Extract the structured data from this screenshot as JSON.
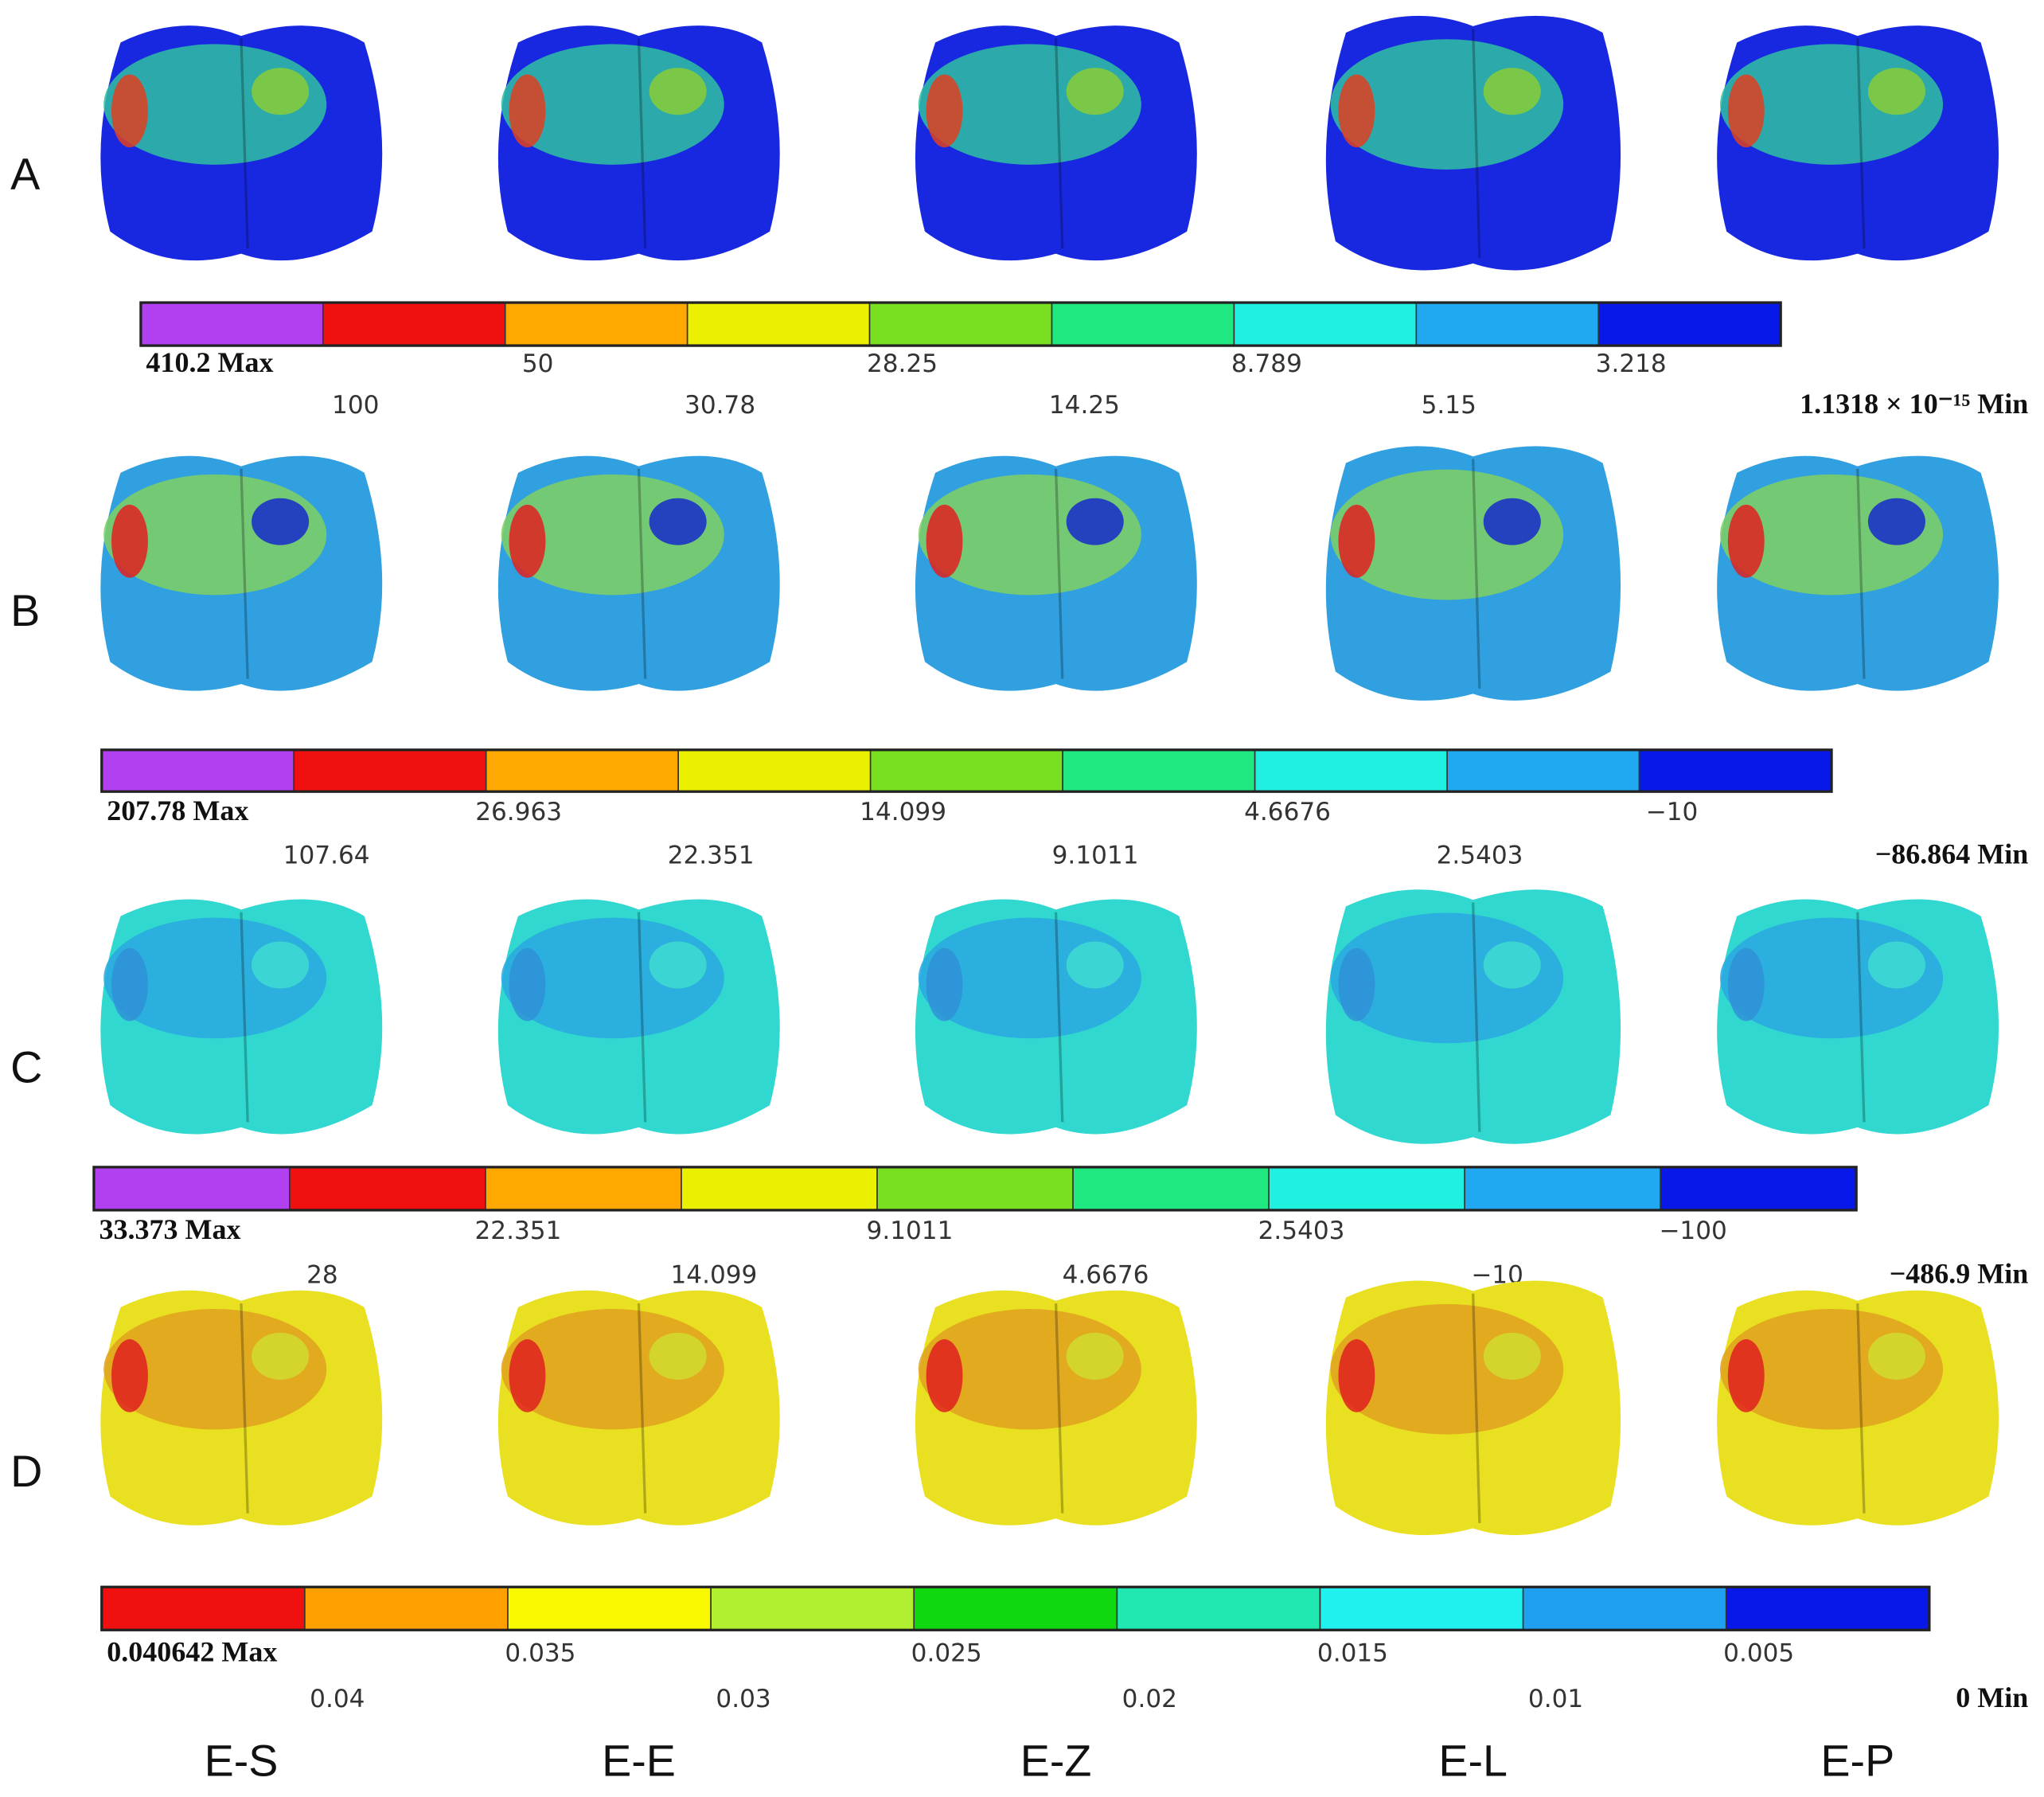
{
  "rows": [
    {
      "label": "A",
      "colorbar": {
        "colors": [
          "#b040f0",
          "#f01010",
          "#ffa800",
          "#eaf000",
          "#78e020",
          "#20e880",
          "#20f0e0",
          "#20a8f0",
          "#0818e8"
        ],
        "labels": [
          "410.2 Max",
          "100",
          "50",
          "30.78",
          "28.25",
          "14.25",
          "8.789",
          "5.15",
          "3.218",
          "1.1318 × 10⁻¹⁵ Min"
        ]
      }
    },
    {
      "label": "B",
      "colorbar": {
        "colors": [
          "#b040f0",
          "#f01010",
          "#ffa800",
          "#eaf000",
          "#78e020",
          "#20e880",
          "#20f0e0",
          "#20a8f0",
          "#0818e8"
        ],
        "labels": [
          "207.78 Max",
          "107.64",
          "26.963",
          "22.351",
          "14.099",
          "9.1011",
          "4.6676",
          "2.5403",
          "−10",
          "−86.864 Min"
        ]
      }
    },
    {
      "label": "C",
      "colorbar": {
        "colors": [
          "#b040f0",
          "#f01010",
          "#ffa800",
          "#eaf000",
          "#78e020",
          "#20e880",
          "#20f0e0",
          "#20a8f0",
          "#0818e8"
        ],
        "labels": [
          "33.373 Max",
          "28",
          "22.351",
          "14.099",
          "9.1011",
          "4.6676",
          "2.5403",
          "−10",
          "−100",
          "−486.9 Min"
        ]
      }
    },
    {
      "label": "D",
      "colorbar": {
        "colors": [
          "#f01010",
          "#ffa000",
          "#f8f800",
          "#b0f030",
          "#10d810",
          "#20e8b0",
          "#20f0f0",
          "#20a0f0",
          "#0818e8"
        ],
        "labels": [
          "0.040642 Max",
          "0.04",
          "0.035",
          "0.03",
          "0.025",
          "0.02",
          "0.015",
          "0.01",
          "0.005",
          "0 Min"
        ]
      }
    }
  ],
  "columns": [
    "E-S",
    "E-E",
    "E-Z",
    "E-L",
    "E-P"
  ]
}
